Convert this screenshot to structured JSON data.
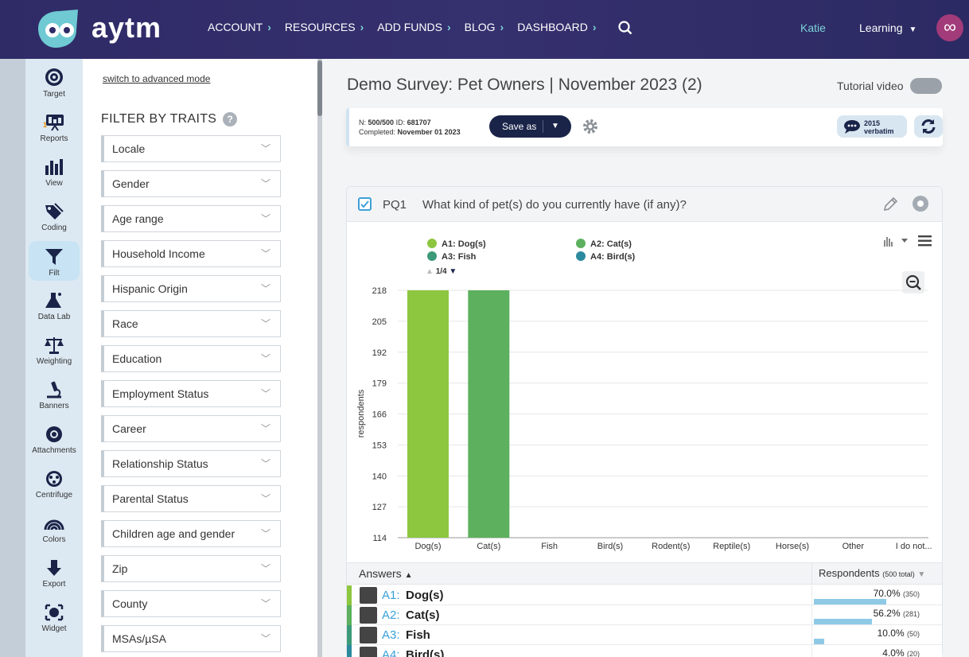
{
  "header": {
    "brand": "aytm",
    "nav": [
      "ACCOUNT",
      "RESOURCES",
      "ADD FUNDS",
      "BLOG",
      "DASHBOARD"
    ],
    "user": "Katie",
    "workspace": "Learning"
  },
  "iconbar": {
    "items": [
      {
        "label": "Target",
        "icon": "target-icon"
      },
      {
        "label": "Reports",
        "icon": "reports-icon",
        "badge": "1"
      },
      {
        "label": "View",
        "icon": "view-icon"
      },
      {
        "label": "Coding",
        "icon": "coding-icon"
      },
      {
        "label": "Filt",
        "icon": "filter-icon"
      },
      {
        "label": "Data Lab",
        "icon": "flask-icon"
      },
      {
        "label": "Weighting",
        "icon": "scale-icon"
      },
      {
        "label": "Banners",
        "icon": "microscope-icon"
      },
      {
        "label": "Attachments",
        "icon": "attachments-icon"
      },
      {
        "label": "Centrifuge",
        "icon": "centrifuge-icon"
      },
      {
        "label": "Colors",
        "icon": "rainbow-icon"
      },
      {
        "label": "Export",
        "icon": "export-icon"
      },
      {
        "label": "Widget",
        "icon": "widget-icon"
      }
    ]
  },
  "filters": {
    "advanced_link": "switch to advanced mode",
    "title": "FILTER BY TRAITS",
    "items": [
      "Locale",
      "Gender",
      "Age range",
      "Household Income",
      "Hispanic Origin",
      "Race",
      "Education",
      "Employment Status",
      "Career",
      "Relationship Status",
      "Parental Status",
      "Children age and gender",
      "Zip",
      "County",
      "MSAs/µSA"
    ]
  },
  "survey": {
    "title": "Demo Survey: Pet Owners | November 2023 (2)",
    "tutorial": "Tutorial video",
    "n_label": "N:",
    "n_value": "500/500",
    "id_label": "ID:",
    "id_value": "681707",
    "completed_label": "Completed:",
    "completed_value": "November 01 2023",
    "save_as": "Save as",
    "verbatim_count": "2015",
    "verbatim_label": "verbatim"
  },
  "question": {
    "id": "PQ1",
    "text": "What kind of pet(s) do you currently have (if any)?",
    "pager": "1/4"
  },
  "legend": [
    {
      "label": "A1: Dog(s)",
      "color": "#8dc63f"
    },
    {
      "label": "A2: Cat(s)",
      "color": "#5cb05e"
    },
    {
      "label": "A3: Fish",
      "color": "#3d9a78"
    },
    {
      "label": "A4: Bird(s)",
      "color": "#2b8a9e"
    }
  ],
  "chart_data": {
    "type": "bar",
    "ylabel": "respondents",
    "yticks": [
      218,
      205,
      192,
      179,
      166,
      153,
      140,
      127,
      114
    ],
    "ylim": [
      114,
      218
    ],
    "grid": true,
    "categories": [
      "Dog(s)",
      "Cat(s)",
      "Fish",
      "Bird(s)",
      "Rodent(s)",
      "Reptile(s)",
      "Horse(s)",
      "Other",
      "I do not..."
    ],
    "values": [
      350,
      281,
      50,
      20,
      null,
      null,
      null,
      null,
      null
    ],
    "colors": [
      "#8dc63f",
      "#5cb05e",
      "#3d9a78",
      "#2b8a9e"
    ]
  },
  "answers": {
    "header_answers": "Answers",
    "header_respondents": "Respondents",
    "header_total": "(500 total)",
    "rows": [
      {
        "code": "A1:",
        "label": "Dog(s)",
        "pct": "70.0%",
        "count": "(350)",
        "fraction": 0.7,
        "color": "#8dc63f"
      },
      {
        "code": "A2:",
        "label": "Cat(s)",
        "pct": "56.2%",
        "count": "(281)",
        "fraction": 0.562,
        "color": "#5cb05e"
      },
      {
        "code": "A3:",
        "label": "Fish",
        "pct": "10.0%",
        "count": "(50)",
        "fraction": 0.1,
        "color": "#3d9a78"
      },
      {
        "code": "A4:",
        "label": "Bird(s)",
        "pct": "4.0%",
        "count": "(20)",
        "fraction": 0.04,
        "color": "#2b8a9e"
      }
    ]
  }
}
